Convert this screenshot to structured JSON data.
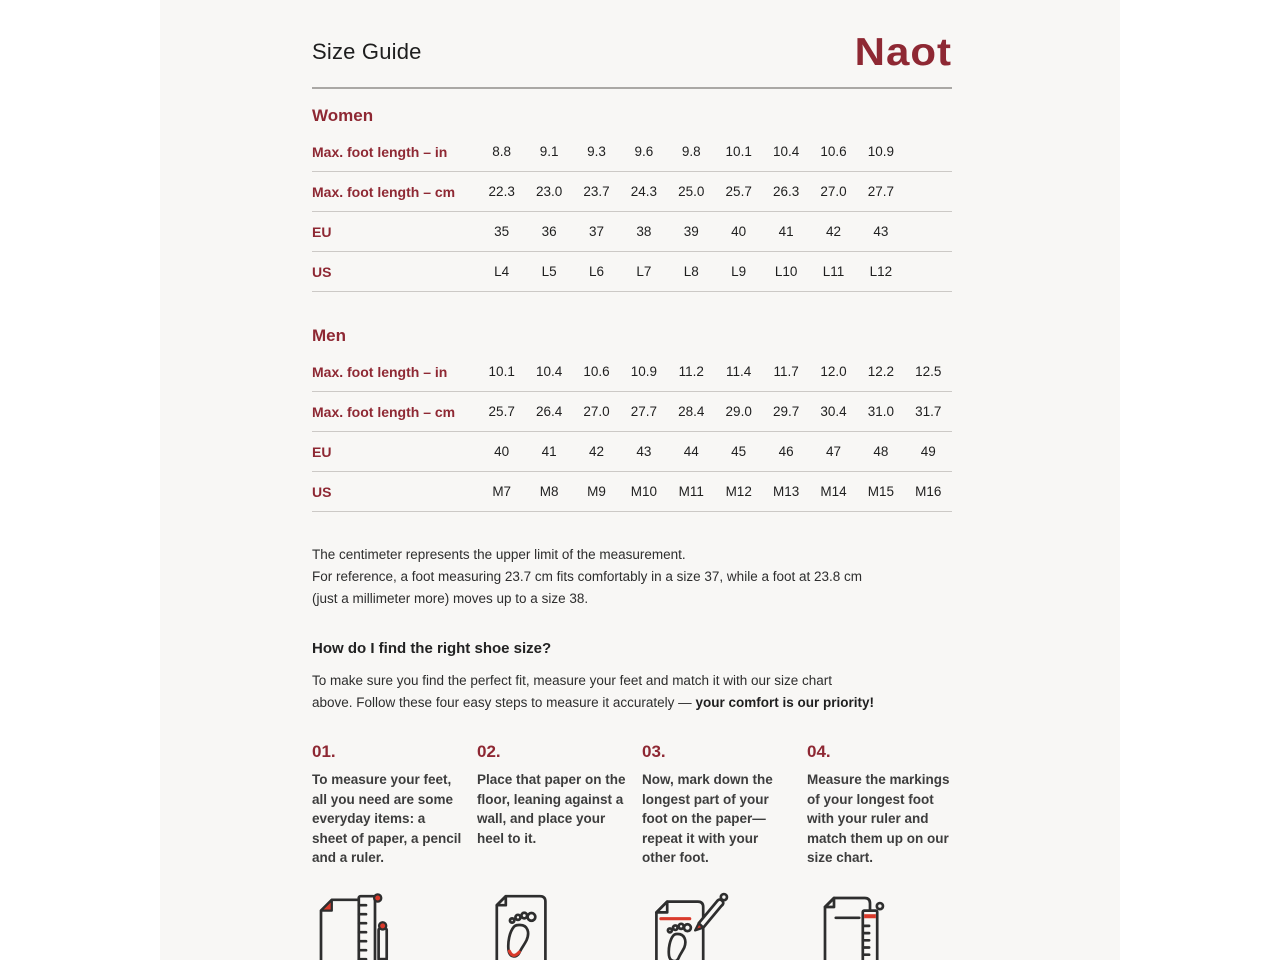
{
  "header": {
    "title": "Size Guide",
    "logo_text": "Naot",
    "brand_color": "#8e2833"
  },
  "women": {
    "section_label": "Women",
    "rows": [
      {
        "label": "Max. foot length – in",
        "values": [
          "8.8",
          "9.1",
          "9.3",
          "9.6",
          "9.8",
          "10.1",
          "10.4",
          "10.6",
          "10.9"
        ]
      },
      {
        "label": "Max. foot length – cm",
        "values": [
          "22.3",
          "23.0",
          "23.7",
          "24.3",
          "25.0",
          "25.7",
          "26.3",
          "27.0",
          "27.7"
        ]
      },
      {
        "label": "EU",
        "values": [
          "35",
          "36",
          "37",
          "38",
          "39",
          "40",
          "41",
          "42",
          "43"
        ]
      },
      {
        "label": "US",
        "values": [
          "L4",
          "L5",
          "L6",
          "L7",
          "L8",
          "L9",
          "L10",
          "L11",
          "L12"
        ]
      }
    ]
  },
  "men": {
    "section_label": "Men",
    "rows": [
      {
        "label": "Max. foot length – in",
        "values": [
          "10.1",
          "10.4",
          "10.6",
          "10.9",
          "11.2",
          "11.4",
          "11.7",
          "12.0",
          "12.2",
          "12.5"
        ]
      },
      {
        "label": "Max. foot length – cm",
        "values": [
          "25.7",
          "26.4",
          "27.0",
          "27.7",
          "28.4",
          "29.0",
          "29.7",
          "30.4",
          "31.0",
          "31.7"
        ]
      },
      {
        "label": "EU",
        "values": [
          "40",
          "41",
          "42",
          "43",
          "44",
          "45",
          "46",
          "47",
          "48",
          "49"
        ]
      },
      {
        "label": "US",
        "values": [
          "M7",
          "M8",
          "M9",
          "M10",
          "M11",
          "M12",
          "M13",
          "M14",
          "M15",
          "M16"
        ]
      }
    ]
  },
  "note": {
    "line1": "The centimeter represents the upper limit of the measurement.",
    "line2": "For reference, a foot measuring 23.7 cm fits comfortably in a size 37, while a foot at 23.8 cm",
    "line3": "(just a millimeter more) moves up to a size 38."
  },
  "how_to": {
    "heading": "How do I find the right shoe size?",
    "intro_line1": "To make sure you find the perfect fit, measure your feet and match it with our size chart",
    "intro_line2_regular": "above. Follow these four easy steps to measure it accurately — ",
    "intro_line2_bold": "your comfort is our priority!",
    "steps": [
      {
        "number": "01.",
        "text": "To measure your feet, all you need are some everyday items: a sheet of paper, a pencil and a ruler.",
        "icon": "paper-ruler-pencil-icon"
      },
      {
        "number": "02.",
        "text": "Place that paper on the floor, leaning against a wall, and place your heel to it.",
        "icon": "paper-heel-floor-icon"
      },
      {
        "number": "03.",
        "text": "Now, mark down the longest part of your foot on the paper—repeat it with your other foot.",
        "icon": "paper-footprint-pencil-icon"
      },
      {
        "number": "04.",
        "text": "Measure the markings of your longest foot with your ruler and match them up on our size chart.",
        "icon": "paper-ruler-match-icon"
      }
    ]
  },
  "colors": {
    "brand_red": "#8e2833",
    "icon_accent_red": "#d93a2b",
    "background": "#f8f7f5",
    "divider": "#ccc9c6"
  }
}
